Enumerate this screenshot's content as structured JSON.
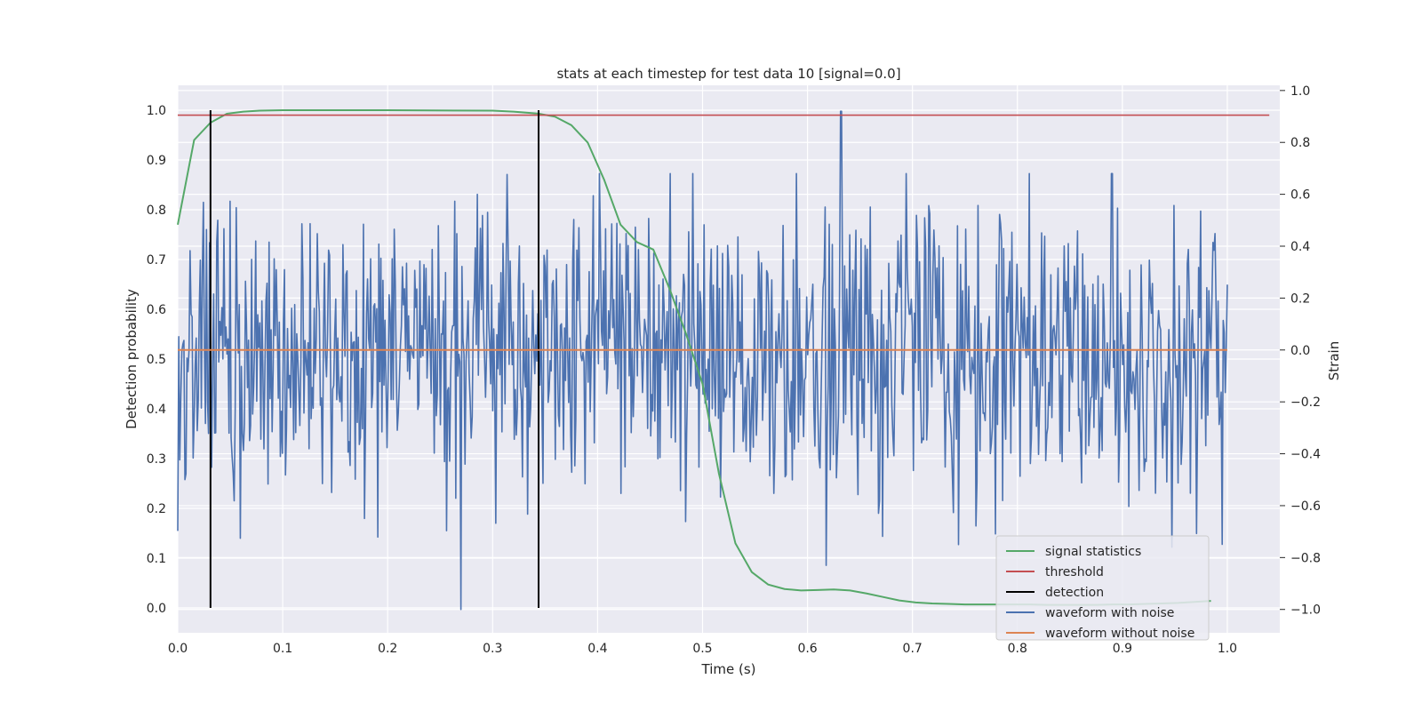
{
  "chart_data": {
    "type": "line",
    "title": "stats at each timestep for test data 10 [signal=0.0]",
    "xlabel": "Time (s)",
    "ylabel": "Detection probability",
    "ylabel_right": "Strain",
    "xlim": [
      0.0,
      1.05
    ],
    "ylim": [
      -0.05,
      1.05
    ],
    "ylim_right": [
      -1.09,
      1.02
    ],
    "x_ticks": [
      "0.0",
      "0.1",
      "0.2",
      "0.3",
      "0.4",
      "0.5",
      "0.6",
      "0.7",
      "0.8",
      "0.9",
      "1.0"
    ],
    "y_ticks": [
      "0.0",
      "0.1",
      "0.2",
      "0.3",
      "0.4",
      "0.5",
      "0.6",
      "0.7",
      "0.8",
      "0.9",
      "1.0"
    ],
    "y_ticks_right": [
      "−1.0",
      "−0.8",
      "−0.6",
      "−0.4",
      "−0.2",
      "0.0",
      "0.2",
      "0.4",
      "0.6",
      "0.8",
      "1.0"
    ],
    "grid": true,
    "legend_position": "lower right",
    "series": [
      {
        "name": "signal statistics",
        "color": "#55a868",
        "axis": "left",
        "x": [
          0.0,
          0.0156,
          0.0312,
          0.0469,
          0.0625,
          0.0781,
          0.1,
          0.2,
          0.3,
          0.32,
          0.3438,
          0.3594,
          0.375,
          0.3906,
          0.4063,
          0.4219,
          0.4375,
          0.4531,
          0.4688,
          0.4844,
          0.5,
          0.5156,
          0.5313,
          0.5469,
          0.5625,
          0.5781,
          0.5938,
          0.6094,
          0.625,
          0.6406,
          0.6563,
          0.6719,
          0.6875,
          0.7031,
          0.7188,
          0.7344,
          0.75,
          0.7656,
          0.7813,
          0.7969,
          0.8125,
          0.8281,
          0.8438,
          0.8594,
          0.875,
          0.8906,
          0.9063,
          0.9219,
          0.9375,
          0.9531,
          0.9688,
          0.9844
        ],
        "values": [
          0.77,
          0.94,
          0.975,
          0.993,
          0.997,
          0.999,
          1.0,
          1.0,
          0.999,
          0.997,
          0.993,
          0.987,
          0.97,
          0.935,
          0.86,
          0.77,
          0.735,
          0.72,
          0.64,
          0.55,
          0.45,
          0.27,
          0.13,
          0.072,
          0.047,
          0.038,
          0.035,
          0.036,
          0.037,
          0.035,
          0.029,
          0.022,
          0.015,
          0.011,
          0.009,
          0.008,
          0.007,
          0.007,
          0.007,
          0.007,
          0.007,
          0.006,
          0.006,
          0.006,
          0.006,
          0.007,
          0.007,
          0.008,
          0.009,
          0.01,
          0.012,
          0.014
        ]
      },
      {
        "name": "threshold",
        "color": "#c44e52",
        "axis": "left",
        "x": [
          0.0,
          1.04
        ],
        "values": [
          0.99,
          0.99
        ]
      },
      {
        "name": "detection",
        "color": "#000000",
        "axis": "left",
        "segments": [
          {
            "x": 0.0312,
            "y": [
              0.0,
              1.0
            ]
          },
          {
            "x": 0.3438,
            "y": [
              0.0,
              1.0
            ]
          }
        ]
      },
      {
        "name": "waveform with noise",
        "color": "#4c72b0",
        "axis": "right",
        "x_start": 0.0,
        "x_end": 1.0,
        "noise_seed": 10,
        "noise_std": 0.3,
        "spikes": [
          {
            "x": 0.27,
            "y": -1.0
          },
          {
            "x": 0.632,
            "y": 0.92
          },
          {
            "x": 0.618,
            "y": -0.83
          },
          {
            "x": 0.947,
            "y": -0.76
          },
          {
            "x": 0.89,
            "y": 0.68
          }
        ]
      },
      {
        "name": "waveform without noise",
        "color": "#dd8452",
        "axis": "right",
        "x": [
          0.0,
          1.0
        ],
        "values": [
          0.0,
          0.0
        ]
      }
    ]
  }
}
